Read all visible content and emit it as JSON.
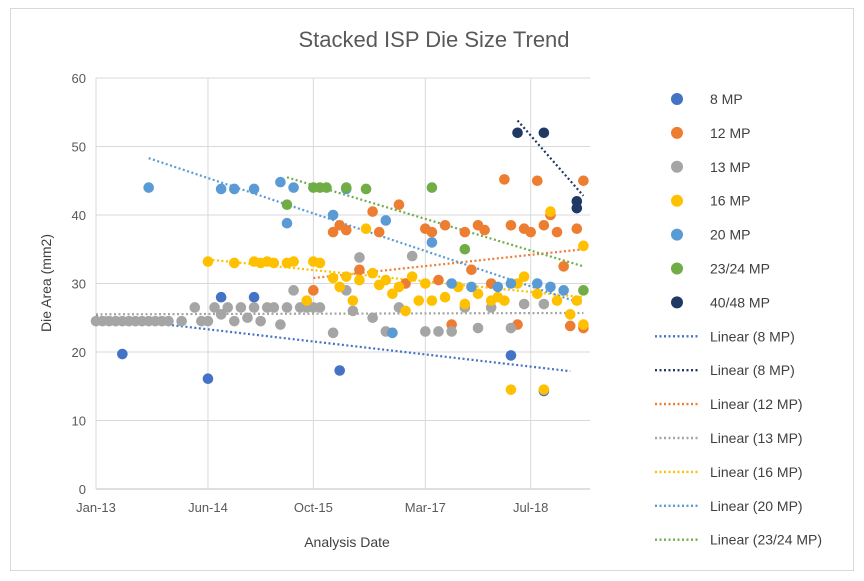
{
  "chart_data": {
    "type": "scatter",
    "title": "Stacked ISP Die Size Trend",
    "xlabel": "Analysis Date",
    "ylabel": "Die Area (mm2)",
    "x_ticks": [
      "Jan-13",
      "Jun-14",
      "Oct-15",
      "Mar-17",
      "Jul-18"
    ],
    "x_range": [
      "2013-01",
      "2019-04"
    ],
    "ylim": [
      0,
      60
    ],
    "y_ticks": [
      0,
      10,
      20,
      30,
      40,
      50,
      60
    ],
    "grid": true,
    "legend_position": "right",
    "series": [
      {
        "name": "8 MP",
        "color": "#4472c4",
        "points": [
          [
            "2013-05",
            19.7
          ],
          [
            "2014-06",
            16.1
          ],
          [
            "2014-08",
            28.0
          ],
          [
            "2015-01",
            28.0
          ],
          [
            "2016-02",
            17.3
          ],
          [
            "2018-04",
            19.5
          ],
          [
            "2018-09",
            14.3
          ]
        ]
      },
      {
        "name": "12 MP",
        "color": "#ed7d31",
        "points": [
          [
            "2015-10",
            29.0
          ],
          [
            "2016-01",
            37.5
          ],
          [
            "2016-02",
            38.5
          ],
          [
            "2016-03",
            37.8
          ],
          [
            "2016-05",
            32.0
          ],
          [
            "2016-07",
            40.5
          ],
          [
            "2016-08",
            37.5
          ],
          [
            "2016-11",
            41.5
          ],
          [
            "2016-12",
            30.0
          ],
          [
            "2017-03",
            38.0
          ],
          [
            "2017-04",
            37.5
          ],
          [
            "2017-05",
            30.5
          ],
          [
            "2017-06",
            38.5
          ],
          [
            "2017-07",
            24.0
          ],
          [
            "2017-09",
            37.5
          ],
          [
            "2017-10",
            32.0
          ],
          [
            "2017-11",
            38.5
          ],
          [
            "2017-12",
            37.8
          ],
          [
            "2018-01",
            30.0
          ],
          [
            "2018-03",
            45.2
          ],
          [
            "2018-04",
            38.5
          ],
          [
            "2018-05",
            24.0
          ],
          [
            "2018-06",
            38.0
          ],
          [
            "2018-07",
            37.5
          ],
          [
            "2018-08",
            45.0
          ],
          [
            "2018-09",
            38.5
          ],
          [
            "2018-10",
            40.0
          ],
          [
            "2018-11",
            37.5
          ],
          [
            "2018-12",
            32.5
          ],
          [
            "2019-01",
            23.8
          ],
          [
            "2019-02",
            38.0
          ],
          [
            "2019-03",
            45.0
          ],
          [
            "2019-03",
            23.5
          ]
        ]
      },
      {
        "name": "13 MP",
        "color": "#a5a5a5",
        "points": [
          [
            "2013-01",
            24.5
          ],
          [
            "2013-02",
            24.5
          ],
          [
            "2013-03",
            24.5
          ],
          [
            "2013-04",
            24.5
          ],
          [
            "2013-05",
            24.5
          ],
          [
            "2013-06",
            24.5
          ],
          [
            "2013-07",
            24.5
          ],
          [
            "2013-08",
            24.5
          ],
          [
            "2013-09",
            24.5
          ],
          [
            "2013-10",
            24.5
          ],
          [
            "2013-11",
            24.5
          ],
          [
            "2013-12",
            24.5
          ],
          [
            "2014-02",
            24.5
          ],
          [
            "2014-04",
            26.5
          ],
          [
            "2014-05",
            24.5
          ],
          [
            "2014-06",
            24.5
          ],
          [
            "2014-07",
            26.5
          ],
          [
            "2014-08",
            25.5
          ],
          [
            "2014-09",
            26.5
          ],
          [
            "2014-10",
            24.5
          ],
          [
            "2014-11",
            26.5
          ],
          [
            "2014-12",
            25.0
          ],
          [
            "2015-01",
            26.5
          ],
          [
            "2015-02",
            24.5
          ],
          [
            "2015-03",
            26.5
          ],
          [
            "2015-04",
            26.5
          ],
          [
            "2015-05",
            24.0
          ],
          [
            "2015-06",
            26.5
          ],
          [
            "2015-07",
            29.0
          ],
          [
            "2015-08",
            26.5
          ],
          [
            "2015-09",
            26.5
          ],
          [
            "2015-10",
            26.5
          ],
          [
            "2015-11",
            26.5
          ],
          [
            "2016-01",
            22.8
          ],
          [
            "2016-03",
            29.0
          ],
          [
            "2016-04",
            26.0
          ],
          [
            "2016-05",
            33.8
          ],
          [
            "2016-07",
            25.0
          ],
          [
            "2016-09",
            23.0
          ],
          [
            "2016-11",
            26.5
          ],
          [
            "2017-01",
            34.0
          ],
          [
            "2017-03",
            23.0
          ],
          [
            "2017-05",
            23.0
          ],
          [
            "2017-07",
            23.0
          ],
          [
            "2017-09",
            26.5
          ],
          [
            "2017-11",
            23.5
          ],
          [
            "2018-01",
            26.5
          ],
          [
            "2018-04",
            23.5
          ],
          [
            "2018-06",
            27.0
          ],
          [
            "2018-09",
            27.0
          ]
        ]
      },
      {
        "name": "16 MP",
        "color": "#ffc000",
        "points": [
          [
            "2014-06",
            33.2
          ],
          [
            "2014-10",
            33.0
          ],
          [
            "2015-01",
            33.2
          ],
          [
            "2015-02",
            33.0
          ],
          [
            "2015-03",
            33.2
          ],
          [
            "2015-04",
            33.0
          ],
          [
            "2015-06",
            33.0
          ],
          [
            "2015-07",
            33.2
          ],
          [
            "2015-09",
            27.5
          ],
          [
            "2015-10",
            33.2
          ],
          [
            "2015-11",
            33.0
          ],
          [
            "2016-01",
            30.8
          ],
          [
            "2016-02",
            29.5
          ],
          [
            "2016-03",
            31.0
          ],
          [
            "2016-04",
            27.5
          ],
          [
            "2016-05",
            30.5
          ],
          [
            "2016-06",
            38.0
          ],
          [
            "2016-07",
            31.5
          ],
          [
            "2016-08",
            29.8
          ],
          [
            "2016-09",
            30.5
          ],
          [
            "2016-10",
            28.5
          ],
          [
            "2016-11",
            29.5
          ],
          [
            "2016-12",
            26.0
          ],
          [
            "2017-01",
            31.0
          ],
          [
            "2017-02",
            27.5
          ],
          [
            "2017-03",
            30.0
          ],
          [
            "2017-04",
            27.5
          ],
          [
            "2017-06",
            28.0
          ],
          [
            "2017-08",
            29.5
          ],
          [
            "2017-09",
            27.0
          ],
          [
            "2017-11",
            28.5
          ],
          [
            "2018-01",
            27.5
          ],
          [
            "2018-02",
            28.0
          ],
          [
            "2018-03",
            27.5
          ],
          [
            "2018-04",
            14.5
          ],
          [
            "2018-05",
            30.0
          ],
          [
            "2018-06",
            31.0
          ],
          [
            "2018-08",
            28.5
          ],
          [
            "2018-09",
            14.5
          ],
          [
            "2018-10",
            40.5
          ],
          [
            "2018-11",
            27.5
          ],
          [
            "2019-01",
            25.5
          ],
          [
            "2019-02",
            27.5
          ],
          [
            "2019-03",
            35.5
          ],
          [
            "2019-03",
            24.0
          ]
        ]
      },
      {
        "name": "20 MP",
        "color": "#5b9bd5",
        "points": [
          [
            "2013-09",
            44.0
          ],
          [
            "2014-08",
            43.8
          ],
          [
            "2014-10",
            43.8
          ],
          [
            "2015-01",
            43.8
          ],
          [
            "2015-05",
            44.8
          ],
          [
            "2015-06",
            38.8
          ],
          [
            "2015-07",
            44.0
          ],
          [
            "2016-01",
            40.0
          ],
          [
            "2016-03",
            43.8
          ],
          [
            "2016-09",
            39.2
          ],
          [
            "2016-10",
            22.8
          ],
          [
            "2017-04",
            36.0
          ],
          [
            "2017-07",
            30.0
          ],
          [
            "2017-10",
            29.5
          ],
          [
            "2018-02",
            29.5
          ],
          [
            "2018-04",
            30.0
          ],
          [
            "2018-08",
            30.0
          ],
          [
            "2018-10",
            29.5
          ],
          [
            "2018-12",
            29.0
          ]
        ]
      },
      {
        "name": "23/24 MP",
        "color": "#70ad47",
        "points": [
          [
            "2015-06",
            41.5
          ],
          [
            "2015-10",
            44.0
          ],
          [
            "2015-11",
            44.0
          ],
          [
            "2015-12",
            44.0
          ],
          [
            "2016-03",
            44.0
          ],
          [
            "2016-06",
            43.8
          ],
          [
            "2017-04",
            44.0
          ],
          [
            "2017-09",
            35.0
          ],
          [
            "2019-03",
            29.0
          ]
        ]
      },
      {
        "name": "40/48 MP",
        "color": "#1f3864",
        "points": [
          [
            "2018-05",
            52.0
          ],
          [
            "2018-09",
            52.0
          ],
          [
            "2019-02",
            42.0
          ],
          [
            "2019-02",
            41.0
          ]
        ]
      }
    ],
    "trendlines": [
      {
        "name": "Linear (8 MP)",
        "color": "#4472c4",
        "from": [
          "2013-01",
          25.2
        ],
        "to": [
          "2019-01",
          17.2
        ]
      },
      {
        "name": "Linear (8 MP)",
        "color": "#1f3864",
        "from": [
          "2018-05",
          53.8
        ],
        "to": [
          "2019-03",
          42.8
        ]
      },
      {
        "name": "Linear (12 MP)",
        "color": "#ed7d31",
        "from": [
          "2015-10",
          30.8
        ],
        "to": [
          "2019-03",
          35.0
        ]
      },
      {
        "name": "Linear (13 MP)",
        "color": "#a5a5a5",
        "from": [
          "2013-01",
          25.5
        ],
        "to": [
          "2019-03",
          25.7
        ]
      },
      {
        "name": "Linear (16 MP)",
        "color": "#ffc000",
        "from": [
          "2014-06",
          33.5
        ],
        "to": [
          "2019-03",
          28.0
        ]
      },
      {
        "name": "Linear (20 MP)",
        "color": "#5b9bd5",
        "from": [
          "2013-09",
          48.3
        ],
        "to": [
          "2019-03",
          27.0
        ]
      },
      {
        "name": "Linear (23/24 MP)",
        "color": "#70ad47",
        "from": [
          "2015-06",
          45.5
        ],
        "to": [
          "2019-03",
          32.5
        ]
      }
    ]
  }
}
